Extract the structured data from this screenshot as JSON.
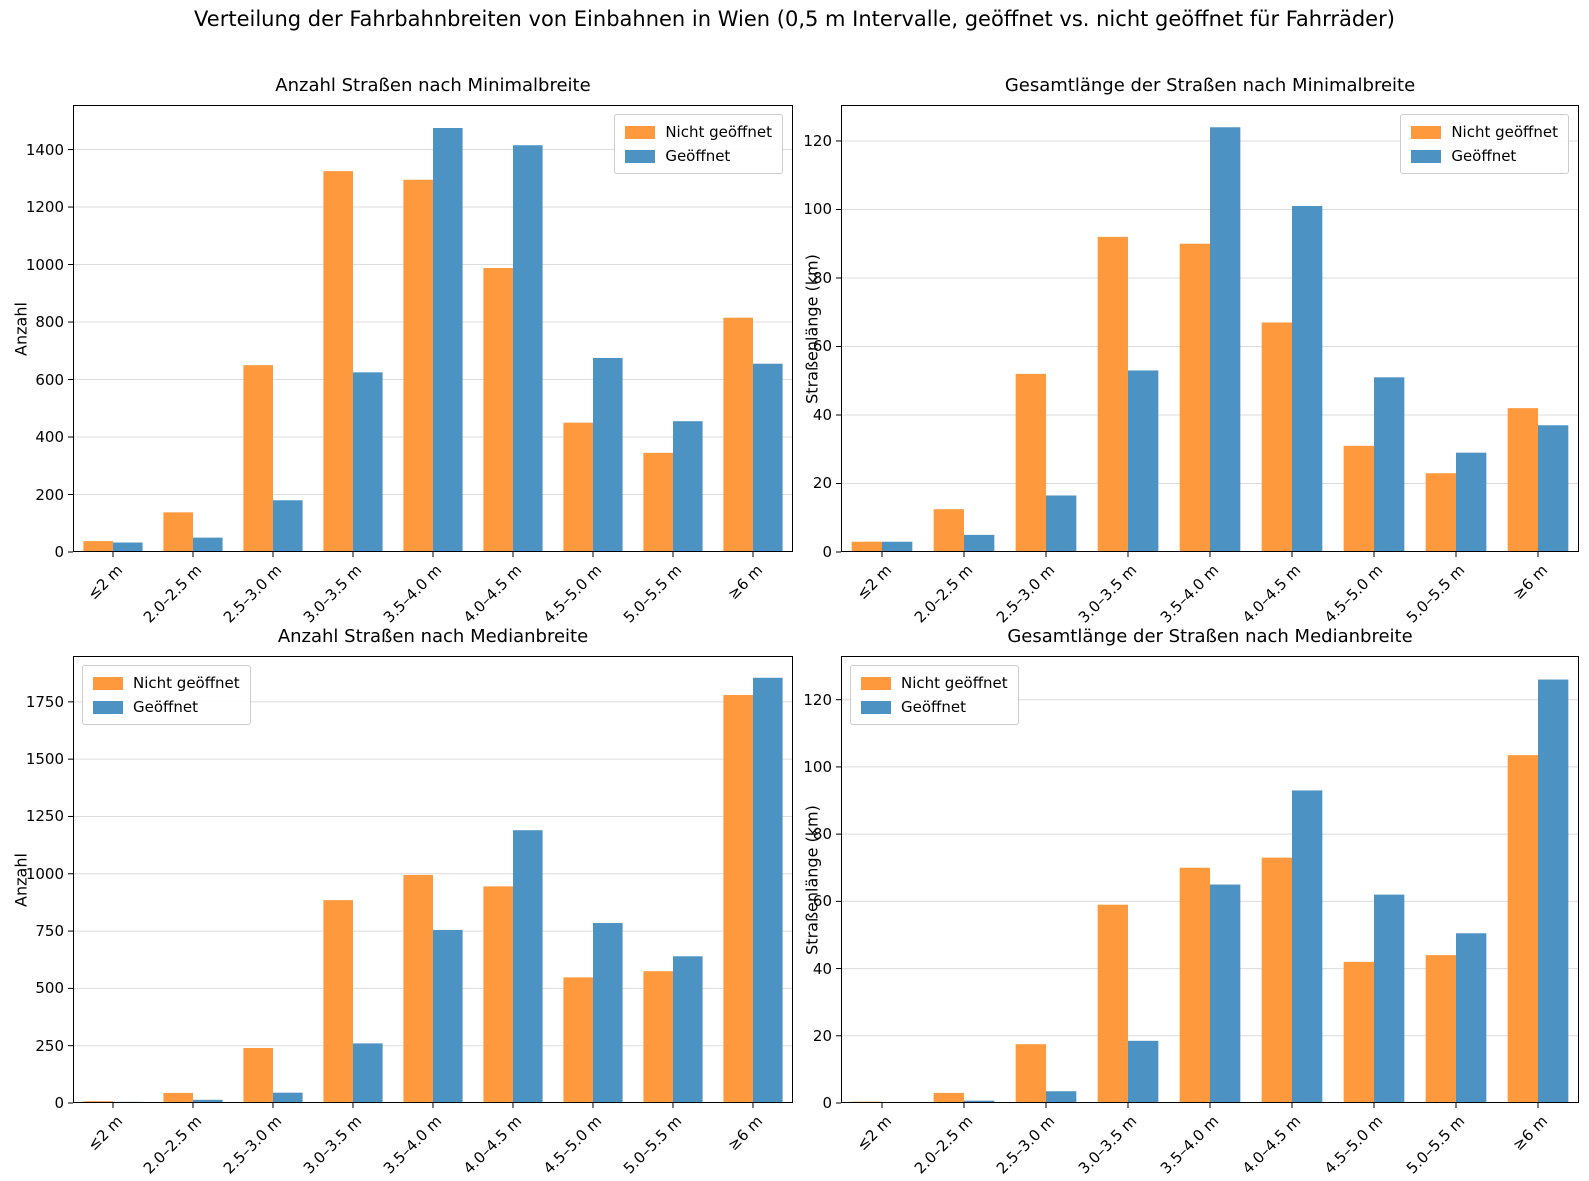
{
  "figure_title": "Verteilung der Fahrbahnbreiten von Einbahnen in Wien (0,5 m Intervalle, geöffnet vs. nicht geöffnet für Fahrräder)",
  "colors": {
    "nicht_geoeffnet": "#FF993E",
    "geoeffnet": "#4C92C3",
    "gridline": "#DCDCDC",
    "axis": "#000000"
  },
  "chart_data": [
    {
      "type": "bar",
      "title": "Anzahl Straßen nach Minimalbreite",
      "xlabel": "",
      "ylabel": "Anzahl",
      "categories": [
        "≤2 m",
        "2.0–2.5 m",
        "2.5–3.0 m",
        "3.0–3.5 m",
        "3.5–4.0 m",
        "4.0–4.5 m",
        "4.5–5.0 m",
        "5.0–5.5 m",
        "≥6 m"
      ],
      "series": [
        {
          "name": "Nicht geöffnet",
          "values": [
            38,
            138,
            650,
            1325,
            1295,
            988,
            450,
            345,
            815
          ]
        },
        {
          "name": "Geöffnet",
          "values": [
            33,
            50,
            180,
            625,
            1475,
            1415,
            675,
            455,
            655
          ]
        }
      ],
      "ylim": [
        0,
        1555
      ],
      "yticks": [
        0,
        200,
        400,
        600,
        800,
        1000,
        1200,
        1400
      ],
      "grid": true,
      "legend_position": "top-right"
    },
    {
      "type": "bar",
      "title": "Gesamtlänge der Straßen nach Minimalbreite",
      "xlabel": "",
      "ylabel": "Straßenlänge (km)",
      "categories": [
        "≤2 m",
        "2.0–2.5 m",
        "2.5–3.0 m",
        "3.0–3.5 m",
        "3.5–4.0 m",
        "4.0–4.5 m",
        "4.5–5.0 m",
        "5.0–5.5 m",
        "≥6 m"
      ],
      "series": [
        {
          "name": "Nicht geöffnet",
          "values": [
            3,
            12.5,
            52,
            92,
            90,
            67,
            31,
            23,
            42
          ]
        },
        {
          "name": "Geöffnet",
          "values": [
            3,
            5,
            16.5,
            53,
            124,
            101,
            51,
            29,
            37
          ]
        }
      ],
      "ylim": [
        0,
        130.5
      ],
      "yticks": [
        0,
        20,
        40,
        60,
        80,
        100,
        120
      ],
      "grid": true,
      "legend_position": "top-right"
    },
    {
      "type": "bar",
      "title": "Anzahl Straßen nach Medianbreite",
      "xlabel": "",
      "ylabel": "Anzahl",
      "categories": [
        "≤2 m",
        "2.0–2.5 m",
        "2.5–3.0 m",
        "3.0–3.5 m",
        "3.5–4.0 m",
        "4.0–4.5 m",
        "4.5–5.0 m",
        "5.0–5.5 m",
        "≥6 m"
      ],
      "series": [
        {
          "name": "Nicht geöffnet",
          "values": [
            8,
            44,
            240,
            885,
            995,
            945,
            548,
            575,
            1780
          ]
        },
        {
          "name": "Geöffnet",
          "values": [
            5,
            14,
            45,
            260,
            755,
            1190,
            785,
            640,
            1855
          ]
        }
      ],
      "ylim": [
        0,
        1950
      ],
      "yticks": [
        0,
        250,
        500,
        750,
        1000,
        1250,
        1500,
        1750
      ],
      "grid": true,
      "legend_position": "top-left"
    },
    {
      "type": "bar",
      "title": "Gesamtlänge der Straßen nach Medianbreite",
      "xlabel": "",
      "ylabel": "Straßenlänge (km)",
      "categories": [
        "≤2 m",
        "2.0–2.5 m",
        "2.5–3.0 m",
        "3.0–3.5 m",
        "3.5–4.0 m",
        "4.0–4.5 m",
        "4.5–5.0 m",
        "5.0–5.5 m",
        "≥6 m"
      ],
      "series": [
        {
          "name": "Nicht geöffnet",
          "values": [
            0.4,
            3,
            17.5,
            59,
            70,
            73,
            42,
            44,
            103.5
          ]
        },
        {
          "name": "Geöffnet",
          "values": [
            0.3,
            0.7,
            3.5,
            18.5,
            65,
            93,
            62,
            50.5,
            126
          ]
        }
      ],
      "ylim": [
        0,
        133
      ],
      "yticks": [
        0,
        20,
        40,
        60,
        80,
        100,
        120
      ],
      "grid": true,
      "legend_position": "top-left"
    }
  ]
}
